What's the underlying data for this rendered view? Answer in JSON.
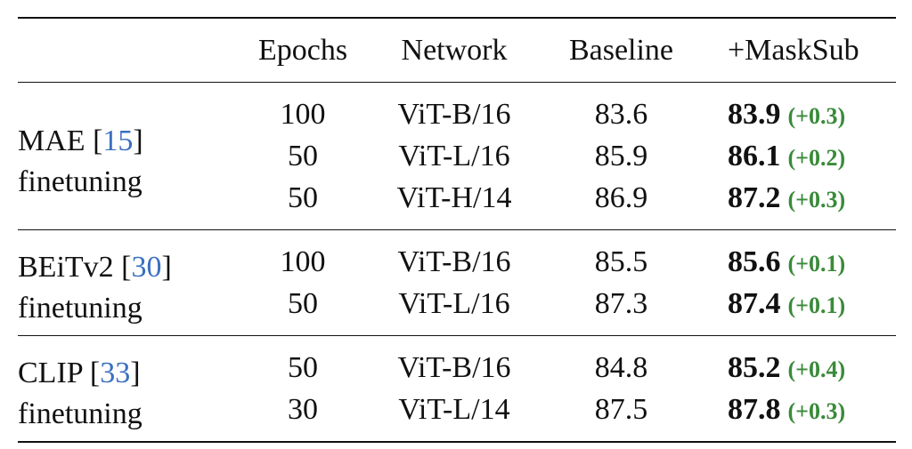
{
  "headers": [
    "",
    "Epochs",
    "Network",
    "Baseline",
    "+MaskSub"
  ],
  "groups": [
    {
      "method": "MAE",
      "cite": "15",
      "sub": "finetuning",
      "rows": [
        {
          "epochs": "100",
          "network": "ViT-B/16",
          "baseline": "83.6",
          "masksub": "83.9",
          "delta": "(+0.3)"
        },
        {
          "epochs": "50",
          "network": "ViT-L/16",
          "baseline": "85.9",
          "masksub": "86.1",
          "delta": "(+0.2)"
        },
        {
          "epochs": "50",
          "network": "ViT-H/14",
          "baseline": "86.9",
          "masksub": "87.2",
          "delta": "(+0.3)"
        }
      ]
    },
    {
      "method": "BEiTv2",
      "cite": "30",
      "sub": "finetuning",
      "rows": [
        {
          "epochs": "100",
          "network": "ViT-B/16",
          "baseline": "85.5",
          "masksub": "85.6",
          "delta": "(+0.1)"
        },
        {
          "epochs": "50",
          "network": "ViT-L/16",
          "baseline": "87.3",
          "masksub": "87.4",
          "delta": "(+0.1)"
        }
      ]
    },
    {
      "method": "CLIP",
      "cite": "33",
      "sub": "finetuning",
      "rows": [
        {
          "epochs": "50",
          "network": "ViT-B/16",
          "baseline": "84.8",
          "masksub": "85.2",
          "delta": "(+0.4)"
        },
        {
          "epochs": "30",
          "network": "ViT-L/14",
          "baseline": "87.5",
          "masksub": "87.8",
          "delta": "(+0.3)"
        }
      ]
    }
  ],
  "colors": {
    "citation": "#3a6fc0",
    "delta": "#3a8a3a",
    "rule": "#111111"
  }
}
